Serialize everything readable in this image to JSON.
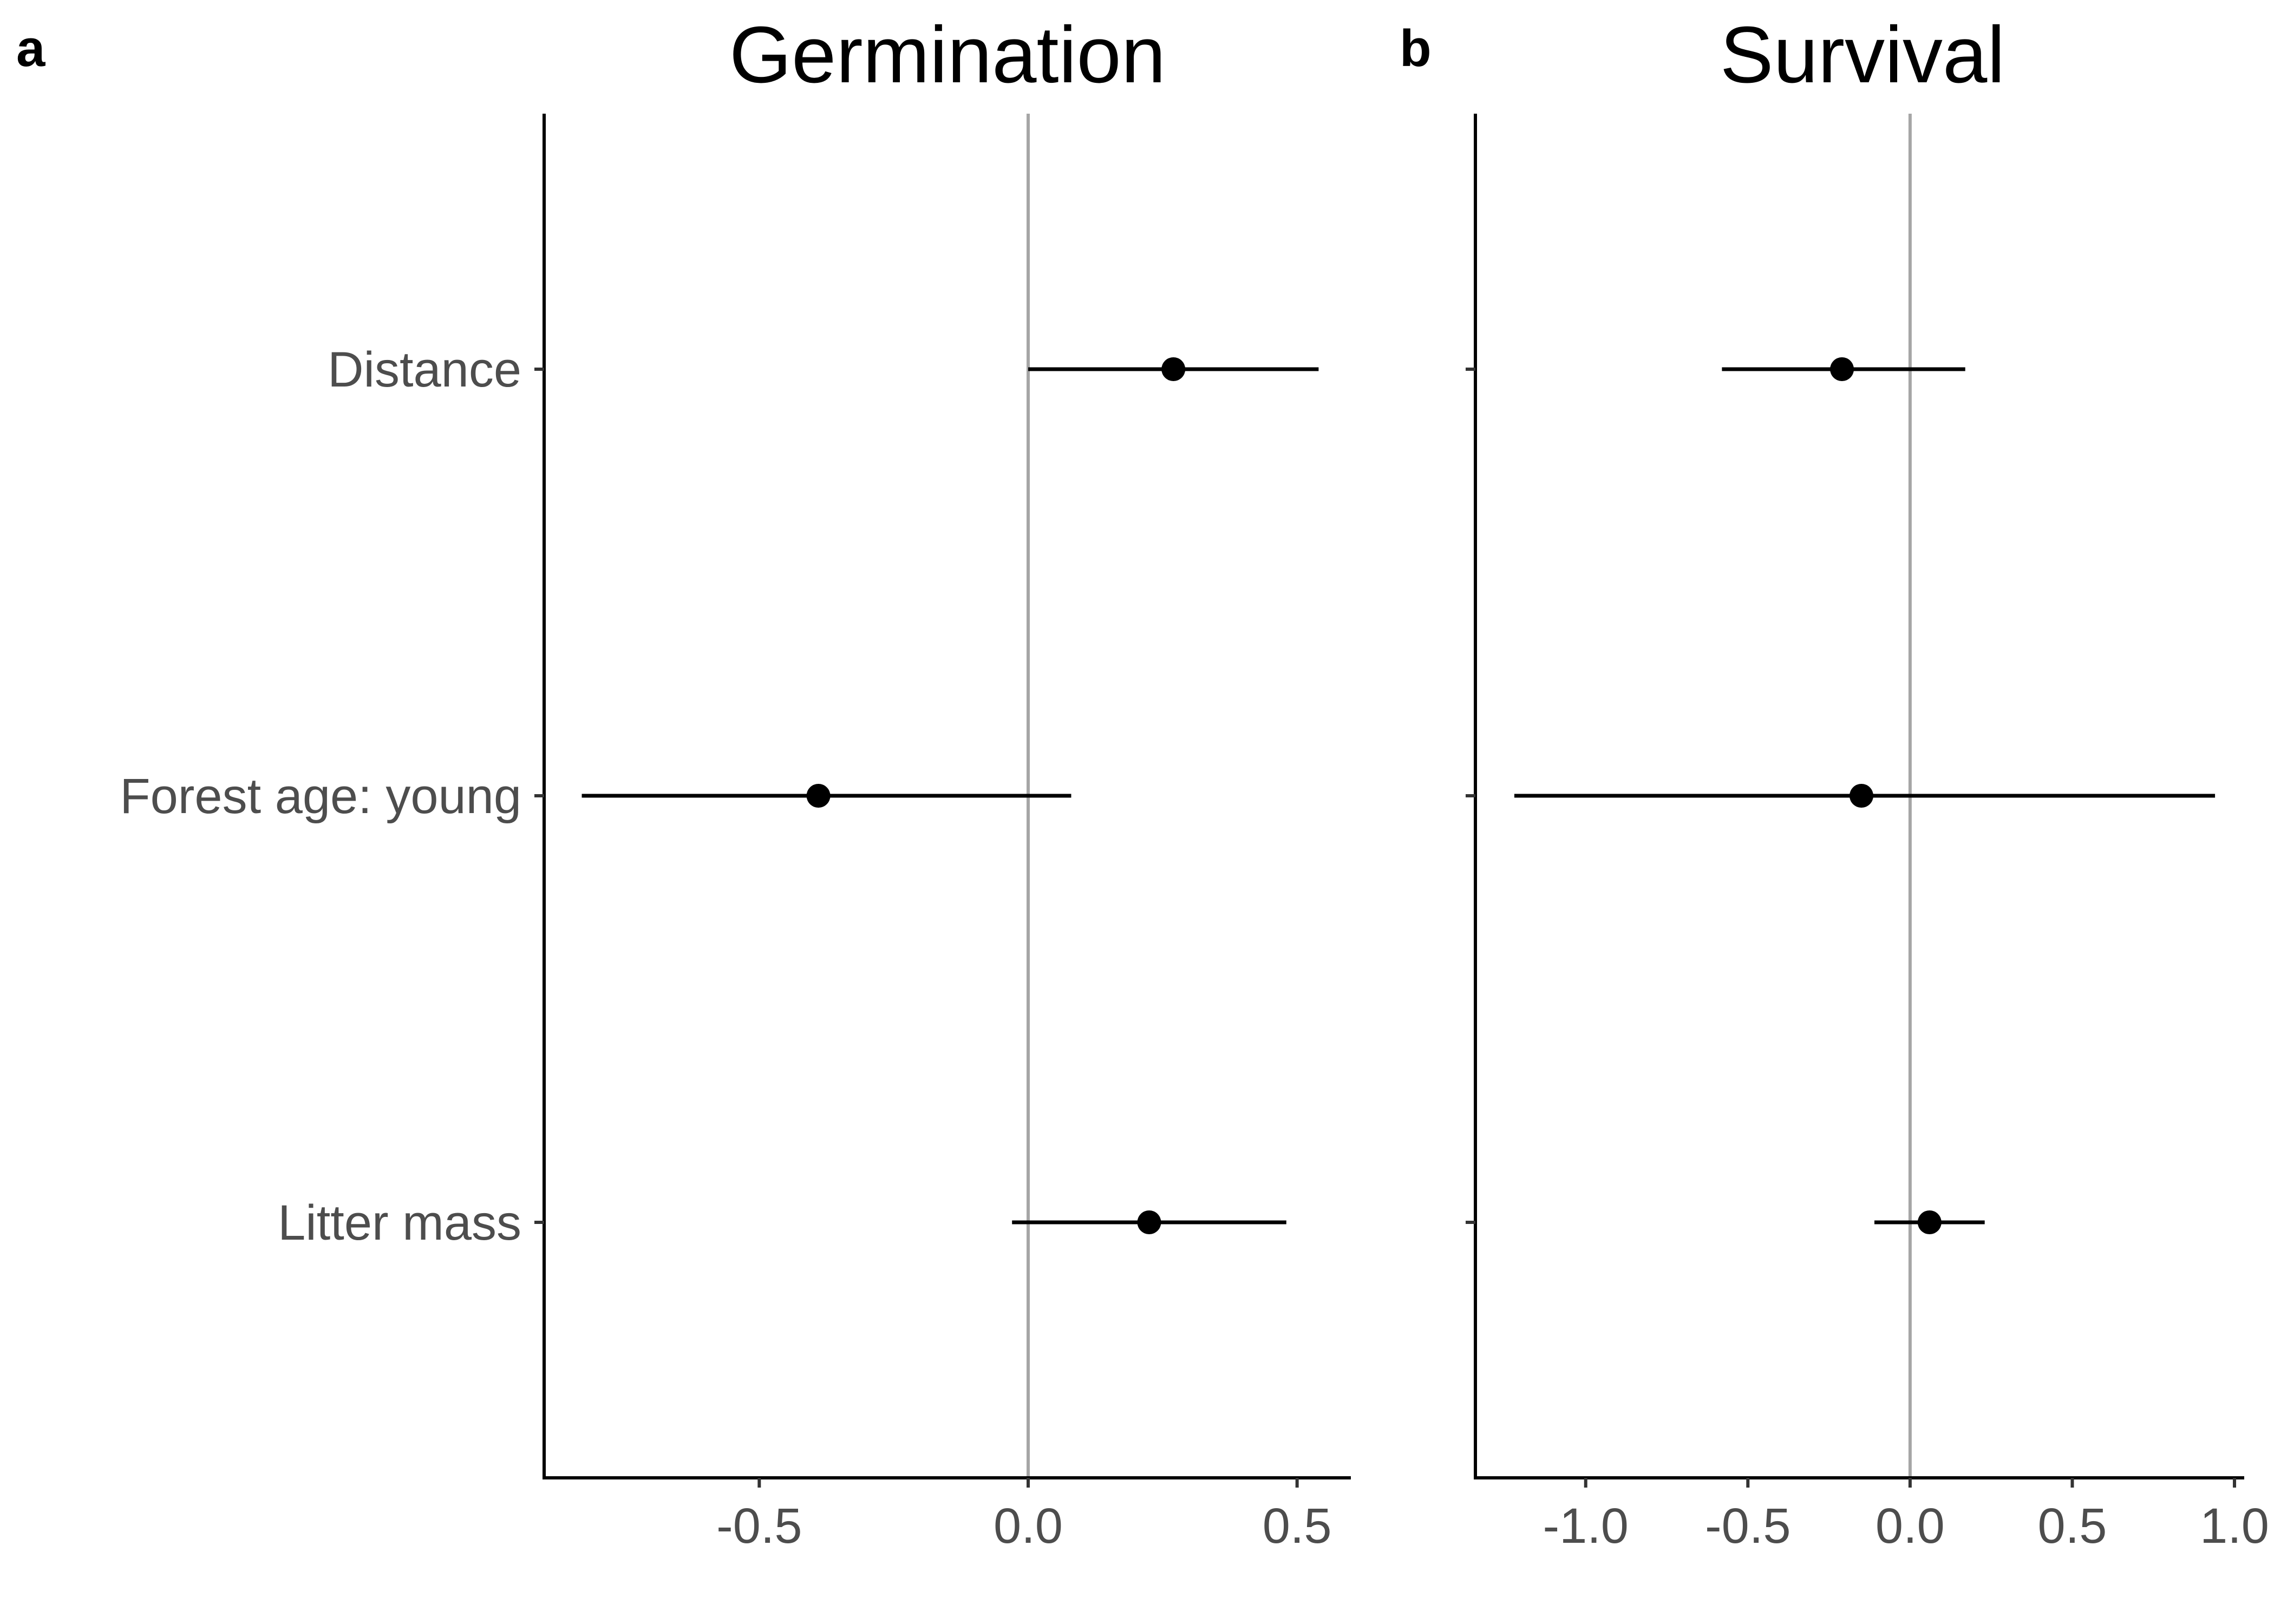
{
  "chart_data": [
    {
      "panel_label": "a",
      "type": "scatter",
      "title": "Germination",
      "xlabel": "",
      "ylabel": "",
      "categories": [
        "Distance",
        "Forest age: young",
        "Litter mass"
      ],
      "estimates": [
        0.27,
        -0.39,
        0.225
      ],
      "ci_low": [
        0.0,
        -0.83,
        -0.03
      ],
      "ci_high": [
        0.54,
        0.08,
        0.48
      ],
      "reference_line": 0,
      "xlim": [
        -0.9,
        0.6
      ],
      "xticks": [
        -0.5,
        0.0,
        0.5
      ],
      "xtick_labels": [
        "-0.5",
        "0.0",
        "0.5"
      ],
      "grid": false
    },
    {
      "panel_label": "b",
      "type": "scatter",
      "title": "Survival",
      "xlabel": "",
      "ylabel": "",
      "categories": [
        "Distance",
        "Forest age: young",
        "Litter mass"
      ],
      "estimates": [
        -0.21,
        -0.15,
        0.06
      ],
      "ci_low": [
        -0.58,
        -1.22,
        -0.11
      ],
      "ci_high": [
        0.17,
        0.94,
        0.23
      ],
      "reference_line": 0,
      "xlim": [
        -1.34,
        1.03
      ],
      "xticks": [
        -1.0,
        -0.5,
        0.0,
        0.5,
        1.0
      ],
      "xtick_labels": [
        "-1.0",
        "-0.5",
        "0.0",
        "0.5",
        "1.0"
      ],
      "grid": false
    }
  ]
}
